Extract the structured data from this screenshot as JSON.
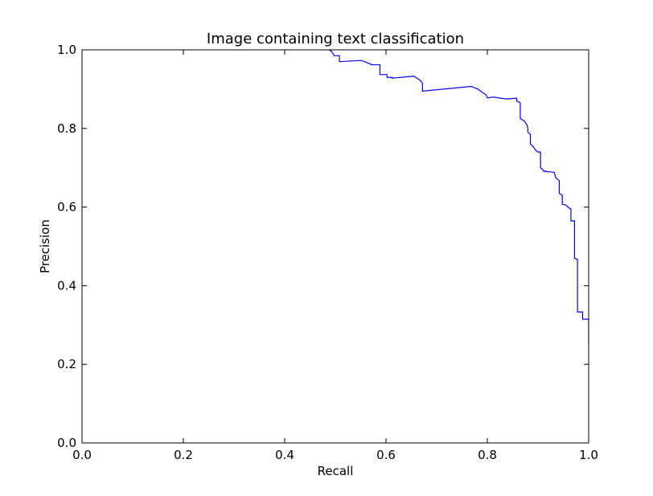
{
  "chart_data": {
    "type": "line",
    "title": "Image containing text classification",
    "xlabel": "Recall",
    "ylabel": "Precision",
    "xlim": [
      0.0,
      1.0
    ],
    "ylim": [
      0.0,
      1.0
    ],
    "grid": false,
    "xticks": [
      0.0,
      0.2,
      0.4,
      0.6,
      0.8,
      1.0
    ],
    "yticks": [
      0.0,
      0.2,
      0.4,
      0.6,
      0.8,
      1.0
    ],
    "xtick_labels": [
      "0.0",
      "0.2",
      "0.4",
      "0.6",
      "0.8",
      "1.0"
    ],
    "ytick_labels": [
      "0.0",
      "0.2",
      "0.4",
      "0.6",
      "0.8",
      "1.0"
    ],
    "colors": {
      "line": "#0000ff",
      "axes": "#000000",
      "background": "#ffffff"
    },
    "series": [
      {
        "x": [
          0.488,
          0.493,
          0.498,
          0.498,
          0.508,
          0.508,
          0.55,
          0.558,
          0.572,
          0.588,
          0.588,
          0.602,
          0.602,
          0.612,
          0.612,
          0.655,
          0.668,
          0.672,
          0.672,
          0.768,
          0.782,
          0.792,
          0.798,
          0.8,
          0.812,
          0.826,
          0.838,
          0.858,
          0.858,
          0.865,
          0.865,
          0.872,
          0.878,
          0.88,
          0.88,
          0.885,
          0.885,
          0.89,
          0.895,
          0.9,
          0.905,
          0.905,
          0.91,
          0.912,
          0.915,
          0.918,
          0.922,
          0.932,
          0.935,
          0.942,
          0.942,
          0.948,
          0.948,
          0.955,
          0.962,
          0.965,
          0.965,
          0.972,
          0.972,
          0.978,
          0.978,
          0.982,
          0.988,
          0.988,
          0.99,
          1.0,
          1.0
        ],
        "y": [
          1.0,
          0.995,
          0.985,
          0.985,
          0.985,
          0.97,
          0.973,
          0.97,
          0.962,
          0.962,
          0.937,
          0.937,
          0.93,
          0.93,
          0.928,
          0.933,
          0.922,
          0.915,
          0.895,
          0.907,
          0.9,
          0.89,
          0.885,
          0.878,
          0.88,
          0.877,
          0.875,
          0.877,
          0.87,
          0.865,
          0.825,
          0.82,
          0.81,
          0.8,
          0.79,
          0.785,
          0.76,
          0.755,
          0.745,
          0.74,
          0.74,
          0.7,
          0.695,
          0.69,
          0.692,
          0.69,
          0.69,
          0.688,
          0.675,
          0.667,
          0.635,
          0.63,
          0.607,
          0.605,
          0.597,
          0.595,
          0.565,
          0.565,
          0.47,
          0.467,
          0.333,
          0.333,
          0.333,
          0.315,
          0.315,
          0.315,
          0.25
        ]
      }
    ]
  }
}
